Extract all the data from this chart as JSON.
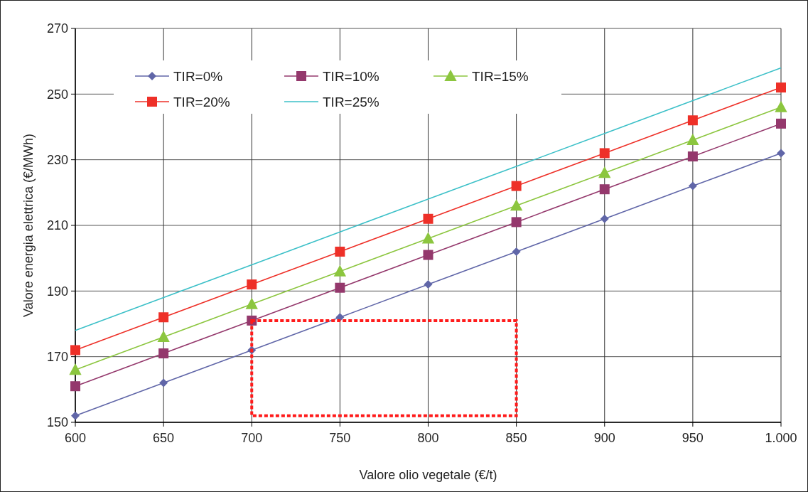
{
  "chart_data": {
    "type": "line",
    "xlabel": "Valore olio vegetale (€/t)",
    "ylabel": "Valore energia elettrica (€/MWh)",
    "x": [
      600,
      650,
      700,
      750,
      800,
      850,
      900,
      950,
      1000
    ],
    "xlim": [
      600,
      1000
    ],
    "xticks": [
      600,
      650,
      700,
      750,
      800,
      850,
      900,
      950,
      {
        "value": 1000,
        "label": "1.000"
      }
    ],
    "ylim": [
      150,
      270
    ],
    "yticks": [
      150,
      170,
      190,
      210,
      230,
      250,
      270
    ],
    "grid": true,
    "legend": "top left",
    "line_style": "solid",
    "series": [
      {
        "name": "TIR=0%",
        "color": "#6066a8",
        "marker": "diamond",
        "values": [
          152,
          162,
          172,
          182,
          192,
          202,
          212,
          222,
          232
        ]
      },
      {
        "name": "TIR=10%",
        "color": "#94386c",
        "marker": "square",
        "values": [
          161,
          171,
          181,
          191,
          201,
          211,
          221,
          231,
          241
        ]
      },
      {
        "name": "TIR=15%",
        "color": "#8cc63f",
        "marker": "triangle",
        "values": [
          166,
          176,
          186,
          196,
          206,
          216,
          226,
          236,
          246
        ]
      },
      {
        "name": "TIR=20%",
        "color": "#ee3028",
        "marker": "square",
        "values": [
          172,
          182,
          192,
          202,
          212,
          222,
          232,
          242,
          252
        ]
      },
      {
        "name": "TIR=25%",
        "color": "#3cc0c8",
        "marker": "none",
        "values": [
          178,
          188,
          198,
          208,
          218,
          228,
          238,
          248,
          258
        ]
      }
    ]
  }
}
